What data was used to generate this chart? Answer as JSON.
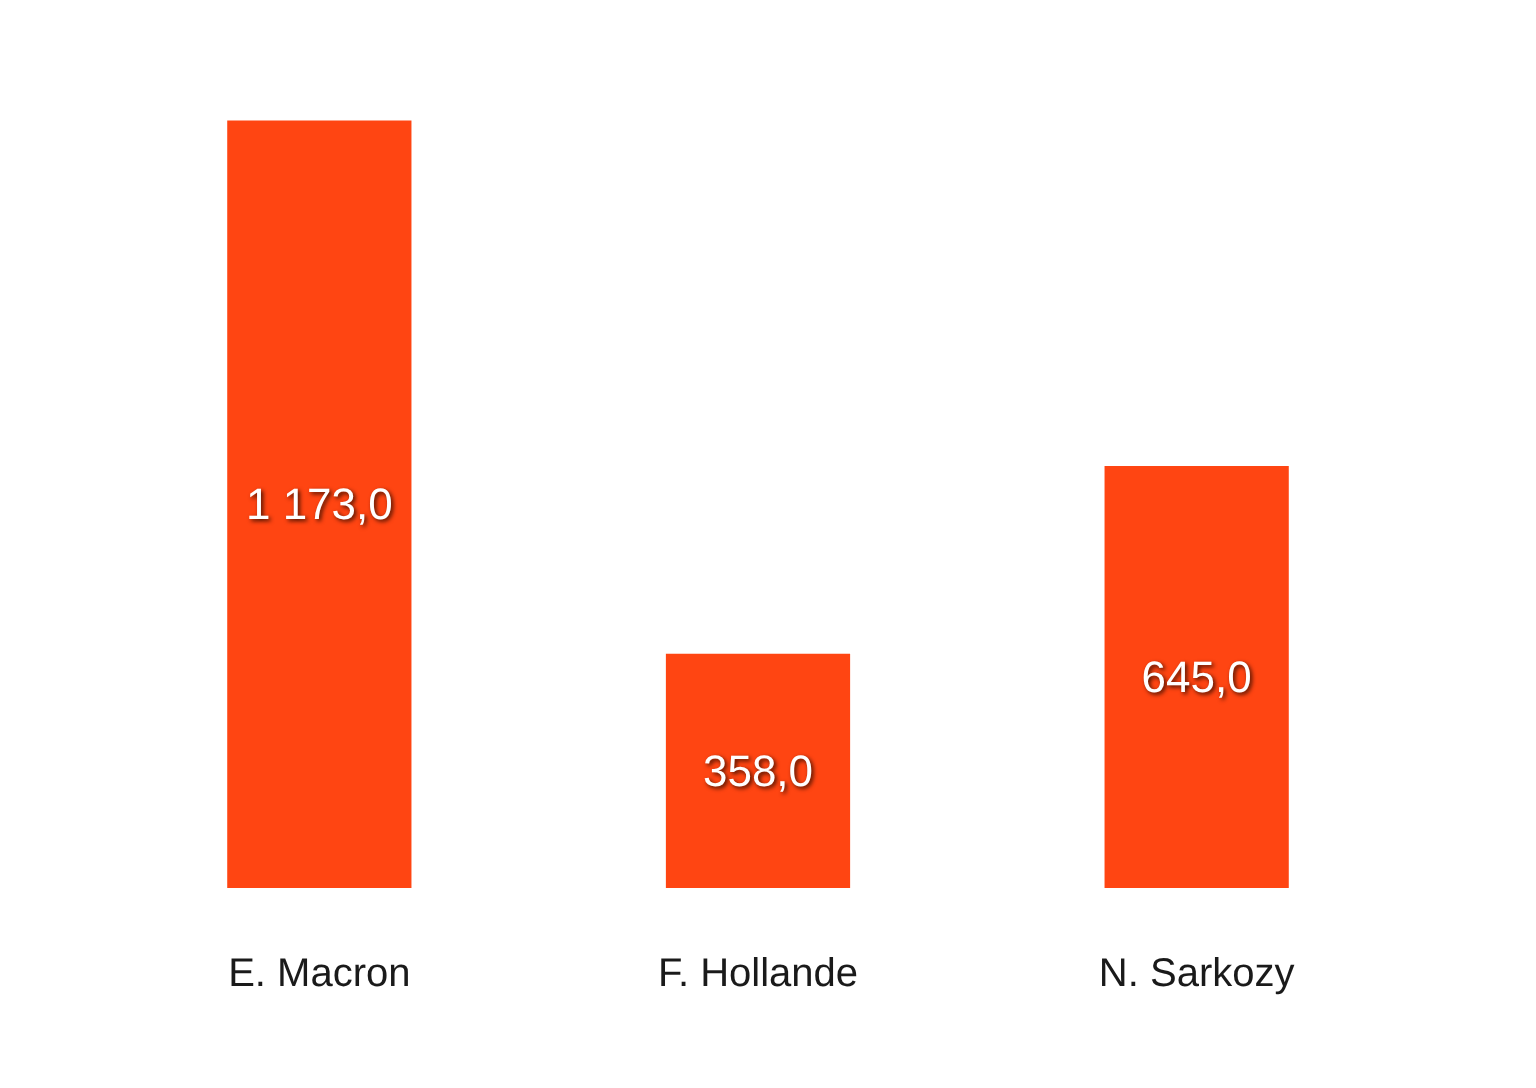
{
  "chart_data": {
    "type": "bar",
    "categories": [
      "E. Macron",
      "F. Hollande",
      "N. Sarkozy"
    ],
    "values": [
      1173,
      358,
      645
    ],
    "value_labels": [
      "1 173,0",
      "358,0",
      "645,0"
    ],
    "color": "#ff4512"
  }
}
